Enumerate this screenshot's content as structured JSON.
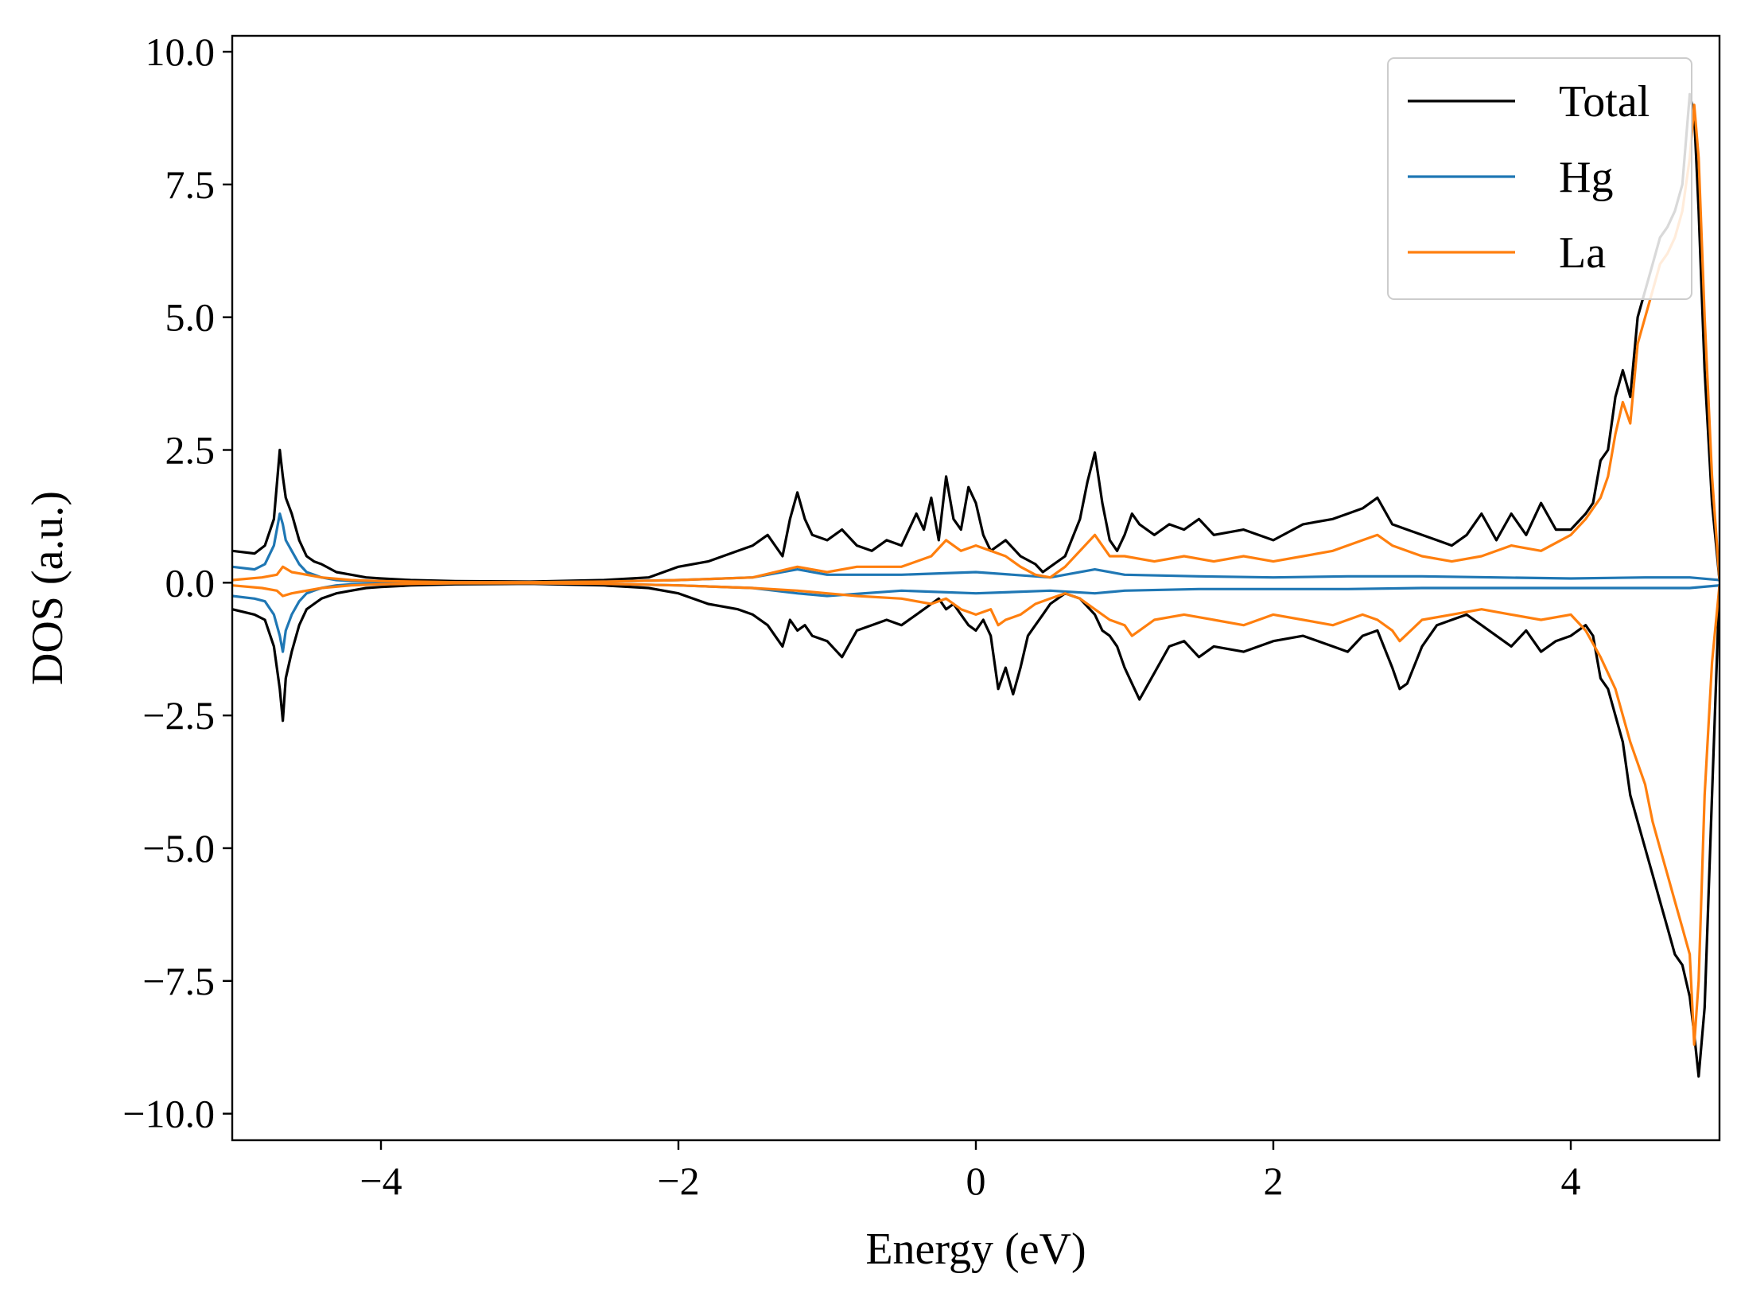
{
  "chart_data": {
    "type": "line",
    "title": "",
    "xlabel": "Energy (eV)",
    "ylabel": "DOS (a.u.)",
    "xlim": [
      -5,
      5
    ],
    "ylim": [
      -10.5,
      10.3
    ],
    "xticks": [
      -4,
      -2,
      0,
      2,
      4
    ],
    "xtick_labels": [
      "−4",
      "−2",
      "0",
      "2",
      "4"
    ],
    "yticks": [
      10,
      7.5,
      5,
      2.5,
      0,
      -2.5,
      -5,
      -7.5,
      -10
    ],
    "ytick_labels": [
      "10.0",
      "7.5",
      "5.0",
      "2.5",
      "0.0",
      "−2.5",
      "−5.0",
      "−7.5",
      "−10.0"
    ],
    "grid": false,
    "legend_position": "top-right",
    "series": [
      {
        "name": "Total",
        "color": "#000000",
        "up": {
          "x": [
            -5.0,
            -4.85,
            -4.78,
            -4.72,
            -4.68,
            -4.66,
            -4.64,
            -4.6,
            -4.55,
            -4.5,
            -4.45,
            -4.4,
            -4.3,
            -4.2,
            -4.1,
            -4.0,
            -3.8,
            -3.5,
            -3.0,
            -2.5,
            -2.2,
            -2.0,
            -1.8,
            -1.6,
            -1.5,
            -1.4,
            -1.3,
            -1.25,
            -1.2,
            -1.15,
            -1.1,
            -1.0,
            -0.9,
            -0.8,
            -0.7,
            -0.6,
            -0.5,
            -0.4,
            -0.35,
            -0.3,
            -0.25,
            -0.2,
            -0.15,
            -0.1,
            -0.05,
            0.0,
            0.05,
            0.1,
            0.2,
            0.3,
            0.4,
            0.45,
            0.5,
            0.6,
            0.7,
            0.75,
            0.8,
            0.85,
            0.9,
            0.95,
            1.0,
            1.05,
            1.1,
            1.2,
            1.3,
            1.4,
            1.5,
            1.6,
            1.8,
            2.0,
            2.2,
            2.4,
            2.5,
            2.6,
            2.7,
            2.8,
            2.9,
            3.0,
            3.1,
            3.2,
            3.3,
            3.4,
            3.5,
            3.6,
            3.7,
            3.8,
            3.9,
            4.0,
            4.1,
            4.15,
            4.2,
            4.25,
            4.3,
            4.35,
            4.4,
            4.45,
            4.5,
            4.55,
            4.6,
            4.65,
            4.7,
            4.75,
            4.8,
            4.83,
            4.86,
            4.9,
            4.95,
            5.0
          ],
          "y": [
            0.6,
            0.55,
            0.7,
            1.2,
            2.5,
            2.0,
            1.6,
            1.3,
            0.8,
            0.5,
            0.4,
            0.35,
            0.2,
            0.15,
            0.1,
            0.08,
            0.05,
            0.03,
            0.02,
            0.05,
            0.1,
            0.3,
            0.4,
            0.6,
            0.7,
            0.9,
            0.5,
            1.2,
            1.7,
            1.2,
            0.9,
            0.8,
            1.0,
            0.7,
            0.6,
            0.8,
            0.7,
            1.3,
            1.0,
            1.6,
            0.8,
            2.0,
            1.2,
            1.0,
            1.8,
            1.5,
            0.9,
            0.6,
            0.8,
            0.5,
            0.35,
            0.2,
            0.3,
            0.5,
            1.2,
            1.9,
            2.45,
            1.5,
            0.8,
            0.6,
            0.9,
            1.3,
            1.1,
            0.9,
            1.1,
            1.0,
            1.2,
            0.9,
            1.0,
            0.8,
            1.1,
            1.2,
            1.3,
            1.4,
            1.6,
            1.1,
            1.0,
            0.9,
            0.8,
            0.7,
            0.9,
            1.3,
            0.8,
            1.3,
            0.9,
            1.5,
            1.0,
            1.0,
            1.3,
            1.5,
            2.3,
            2.5,
            3.5,
            4.0,
            3.5,
            5.0,
            5.5,
            6.0,
            6.5,
            6.7,
            7.0,
            7.5,
            9.2,
            8.8,
            7.0,
            4.0,
            1.5,
            0.05
          ]
        },
        "down": {
          "x": [
            -5.0,
            -4.85,
            -4.78,
            -4.72,
            -4.68,
            -4.66,
            -4.64,
            -4.6,
            -4.55,
            -4.5,
            -4.45,
            -4.4,
            -4.3,
            -4.2,
            -4.1,
            -4.0,
            -3.8,
            -3.5,
            -3.0,
            -2.5,
            -2.2,
            -2.0,
            -1.8,
            -1.6,
            -1.5,
            -1.4,
            -1.3,
            -1.25,
            -1.2,
            -1.15,
            -1.1,
            -1.0,
            -0.9,
            -0.8,
            -0.7,
            -0.6,
            -0.5,
            -0.4,
            -0.35,
            -0.3,
            -0.25,
            -0.2,
            -0.15,
            -0.1,
            -0.05,
            0.0,
            0.05,
            0.1,
            0.15,
            0.2,
            0.25,
            0.3,
            0.35,
            0.4,
            0.45,
            0.5,
            0.6,
            0.7,
            0.8,
            0.85,
            0.9,
            0.95,
            1.0,
            1.05,
            1.1,
            1.2,
            1.3,
            1.4,
            1.5,
            1.6,
            1.8,
            2.0,
            2.2,
            2.4,
            2.5,
            2.6,
            2.7,
            2.8,
            2.85,
            2.9,
            3.0,
            3.1,
            3.2,
            3.3,
            3.4,
            3.5,
            3.6,
            3.7,
            3.8,
            3.9,
            4.0,
            4.1,
            4.15,
            4.2,
            4.25,
            4.3,
            4.35,
            4.4,
            4.45,
            4.5,
            4.55,
            4.6,
            4.65,
            4.7,
            4.75,
            4.8,
            4.83,
            4.86,
            4.9,
            4.95,
            5.0
          ],
          "y": [
            -0.5,
            -0.6,
            -0.7,
            -1.2,
            -2.0,
            -2.6,
            -1.8,
            -1.3,
            -0.8,
            -0.5,
            -0.4,
            -0.3,
            -0.2,
            -0.15,
            -0.1,
            -0.08,
            -0.05,
            -0.03,
            -0.02,
            -0.05,
            -0.1,
            -0.2,
            -0.4,
            -0.5,
            -0.6,
            -0.8,
            -1.2,
            -0.7,
            -0.9,
            -0.8,
            -1.0,
            -1.1,
            -1.4,
            -0.9,
            -0.8,
            -0.7,
            -0.8,
            -0.6,
            -0.5,
            -0.4,
            -0.3,
            -0.5,
            -0.4,
            -0.6,
            -0.8,
            -0.9,
            -0.7,
            -1.0,
            -2.0,
            -1.6,
            -2.1,
            -1.6,
            -1.0,
            -0.8,
            -0.6,
            -0.4,
            -0.2,
            -0.3,
            -0.6,
            -0.9,
            -1.0,
            -1.2,
            -1.6,
            -1.9,
            -2.2,
            -1.7,
            -1.2,
            -1.1,
            -1.4,
            -1.2,
            -1.3,
            -1.1,
            -1.0,
            -1.2,
            -1.3,
            -1.0,
            -0.9,
            -1.6,
            -2.0,
            -1.9,
            -1.2,
            -0.8,
            -0.7,
            -0.6,
            -0.8,
            -1.0,
            -1.2,
            -0.9,
            -1.3,
            -1.1,
            -1.0,
            -0.8,
            -1.0,
            -1.8,
            -2.0,
            -2.5,
            -3.0,
            -4.0,
            -4.5,
            -5.0,
            -5.5,
            -6.0,
            -6.5,
            -7.0,
            -7.2,
            -7.8,
            -8.5,
            -9.3,
            -8.0,
            -4.0,
            -0.05
          ]
        }
      },
      {
        "name": "Hg",
        "color": "#1f77b4",
        "up": {
          "x": [
            -5.0,
            -4.85,
            -4.78,
            -4.72,
            -4.68,
            -4.66,
            -4.64,
            -4.6,
            -4.55,
            -4.5,
            -4.45,
            -4.4,
            -4.3,
            -4.2,
            -4.0,
            -3.5,
            -3.0,
            -2.5,
            -2.0,
            -1.5,
            -1.2,
            -1.0,
            -0.5,
            0.0,
            0.5,
            0.8,
            1.0,
            1.5,
            2.0,
            2.5,
            3.0,
            3.5,
            4.0,
            4.5,
            4.8,
            5.0
          ],
          "y": [
            0.3,
            0.25,
            0.35,
            0.7,
            1.3,
            1.1,
            0.8,
            0.6,
            0.35,
            0.2,
            0.15,
            0.1,
            0.05,
            0.03,
            0.02,
            0.01,
            0.01,
            0.02,
            0.05,
            0.1,
            0.25,
            0.15,
            0.15,
            0.2,
            0.1,
            0.25,
            0.15,
            0.12,
            0.1,
            0.12,
            0.12,
            0.1,
            0.08,
            0.1,
            0.1,
            0.05
          ]
        },
        "down": {
          "x": [
            -5.0,
            -4.85,
            -4.78,
            -4.72,
            -4.68,
            -4.66,
            -4.64,
            -4.6,
            -4.55,
            -4.5,
            -4.45,
            -4.4,
            -4.3,
            -4.2,
            -4.0,
            -3.5,
            -3.0,
            -2.5,
            -2.0,
            -1.5,
            -1.2,
            -1.0,
            -0.5,
            0.0,
            0.5,
            0.8,
            1.0,
            1.5,
            2.0,
            2.5,
            3.0,
            3.5,
            4.0,
            4.5,
            4.8,
            5.0
          ],
          "y": [
            -0.25,
            -0.3,
            -0.35,
            -0.6,
            -1.0,
            -1.3,
            -0.9,
            -0.6,
            -0.35,
            -0.2,
            -0.15,
            -0.1,
            -0.05,
            -0.03,
            -0.02,
            -0.01,
            -0.01,
            -0.02,
            -0.05,
            -0.1,
            -0.2,
            -0.25,
            -0.15,
            -0.2,
            -0.15,
            -0.2,
            -0.15,
            -0.12,
            -0.12,
            -0.12,
            -0.1,
            -0.1,
            -0.1,
            -0.1,
            -0.1,
            -0.05
          ]
        }
      },
      {
        "name": "La",
        "color": "#ff7f0e",
        "up": {
          "x": [
            -5.0,
            -4.8,
            -4.7,
            -4.66,
            -4.6,
            -4.5,
            -4.4,
            -4.2,
            -4.0,
            -3.5,
            -3.0,
            -2.5,
            -2.0,
            -1.5,
            -1.2,
            -1.0,
            -0.8,
            -0.5,
            -0.3,
            -0.2,
            -0.1,
            0.0,
            0.1,
            0.2,
            0.3,
            0.4,
            0.5,
            0.6,
            0.7,
            0.8,
            0.9,
            1.0,
            1.2,
            1.4,
            1.6,
            1.8,
            2.0,
            2.2,
            2.4,
            2.6,
            2.7,
            2.8,
            3.0,
            3.2,
            3.4,
            3.6,
            3.8,
            4.0,
            4.1,
            4.2,
            4.25,
            4.3,
            4.35,
            4.4,
            4.45,
            4.5,
            4.55,
            4.6,
            4.65,
            4.7,
            4.75,
            4.8,
            4.83,
            4.86,
            4.9,
            4.95,
            5.0
          ],
          "y": [
            0.05,
            0.1,
            0.15,
            0.3,
            0.2,
            0.15,
            0.1,
            0.05,
            0.03,
            0.01,
            0.01,
            0.02,
            0.05,
            0.1,
            0.3,
            0.2,
            0.3,
            0.3,
            0.5,
            0.8,
            0.6,
            0.7,
            0.6,
            0.5,
            0.3,
            0.15,
            0.1,
            0.3,
            0.6,
            0.9,
            0.5,
            0.5,
            0.4,
            0.5,
            0.4,
            0.5,
            0.4,
            0.5,
            0.6,
            0.8,
            0.9,
            0.7,
            0.5,
            0.4,
            0.5,
            0.7,
            0.6,
            0.9,
            1.2,
            1.6,
            2.0,
            2.8,
            3.4,
            3.0,
            4.5,
            5.0,
            5.5,
            6.0,
            6.2,
            6.5,
            7.0,
            8.0,
            9.0,
            8.0,
            5.0,
            2.0,
            0.05
          ]
        },
        "down": {
          "x": [
            -5.0,
            -4.8,
            -4.7,
            -4.66,
            -4.6,
            -4.5,
            -4.4,
            -4.2,
            -4.0,
            -3.5,
            -3.0,
            -2.5,
            -2.0,
            -1.5,
            -1.2,
            -1.0,
            -0.8,
            -0.5,
            -0.3,
            -0.2,
            -0.1,
            0.0,
            0.1,
            0.15,
            0.2,
            0.3,
            0.4,
            0.5,
            0.6,
            0.7,
            0.8,
            0.9,
            1.0,
            1.05,
            1.1,
            1.2,
            1.4,
            1.6,
            1.8,
            2.0,
            2.2,
            2.4,
            2.6,
            2.7,
            2.8,
            2.85,
            3.0,
            3.2,
            3.4,
            3.6,
            3.8,
            4.0,
            4.1,
            4.2,
            4.3,
            4.4,
            4.5,
            4.55,
            4.6,
            4.65,
            4.7,
            4.75,
            4.8,
            4.83,
            4.86,
            4.9,
            4.95,
            5.0
          ],
          "y": [
            -0.05,
            -0.1,
            -0.15,
            -0.25,
            -0.2,
            -0.15,
            -0.1,
            -0.05,
            -0.03,
            -0.01,
            -0.01,
            -0.02,
            -0.05,
            -0.1,
            -0.15,
            -0.2,
            -0.25,
            -0.3,
            -0.4,
            -0.3,
            -0.5,
            -0.6,
            -0.5,
            -0.8,
            -0.7,
            -0.6,
            -0.4,
            -0.3,
            -0.2,
            -0.3,
            -0.5,
            -0.7,
            -0.8,
            -1.0,
            -0.9,
            -0.7,
            -0.6,
            -0.7,
            -0.8,
            -0.6,
            -0.7,
            -0.8,
            -0.6,
            -0.7,
            -0.9,
            -1.1,
            -0.7,
            -0.6,
            -0.5,
            -0.6,
            -0.7,
            -0.6,
            -0.9,
            -1.4,
            -2.0,
            -3.0,
            -3.8,
            -4.5,
            -5.0,
            -5.5,
            -6.0,
            -6.5,
            -7.0,
            -8.7,
            -7.5,
            -4.0,
            -1.5,
            -0.05
          ]
        }
      }
    ]
  }
}
